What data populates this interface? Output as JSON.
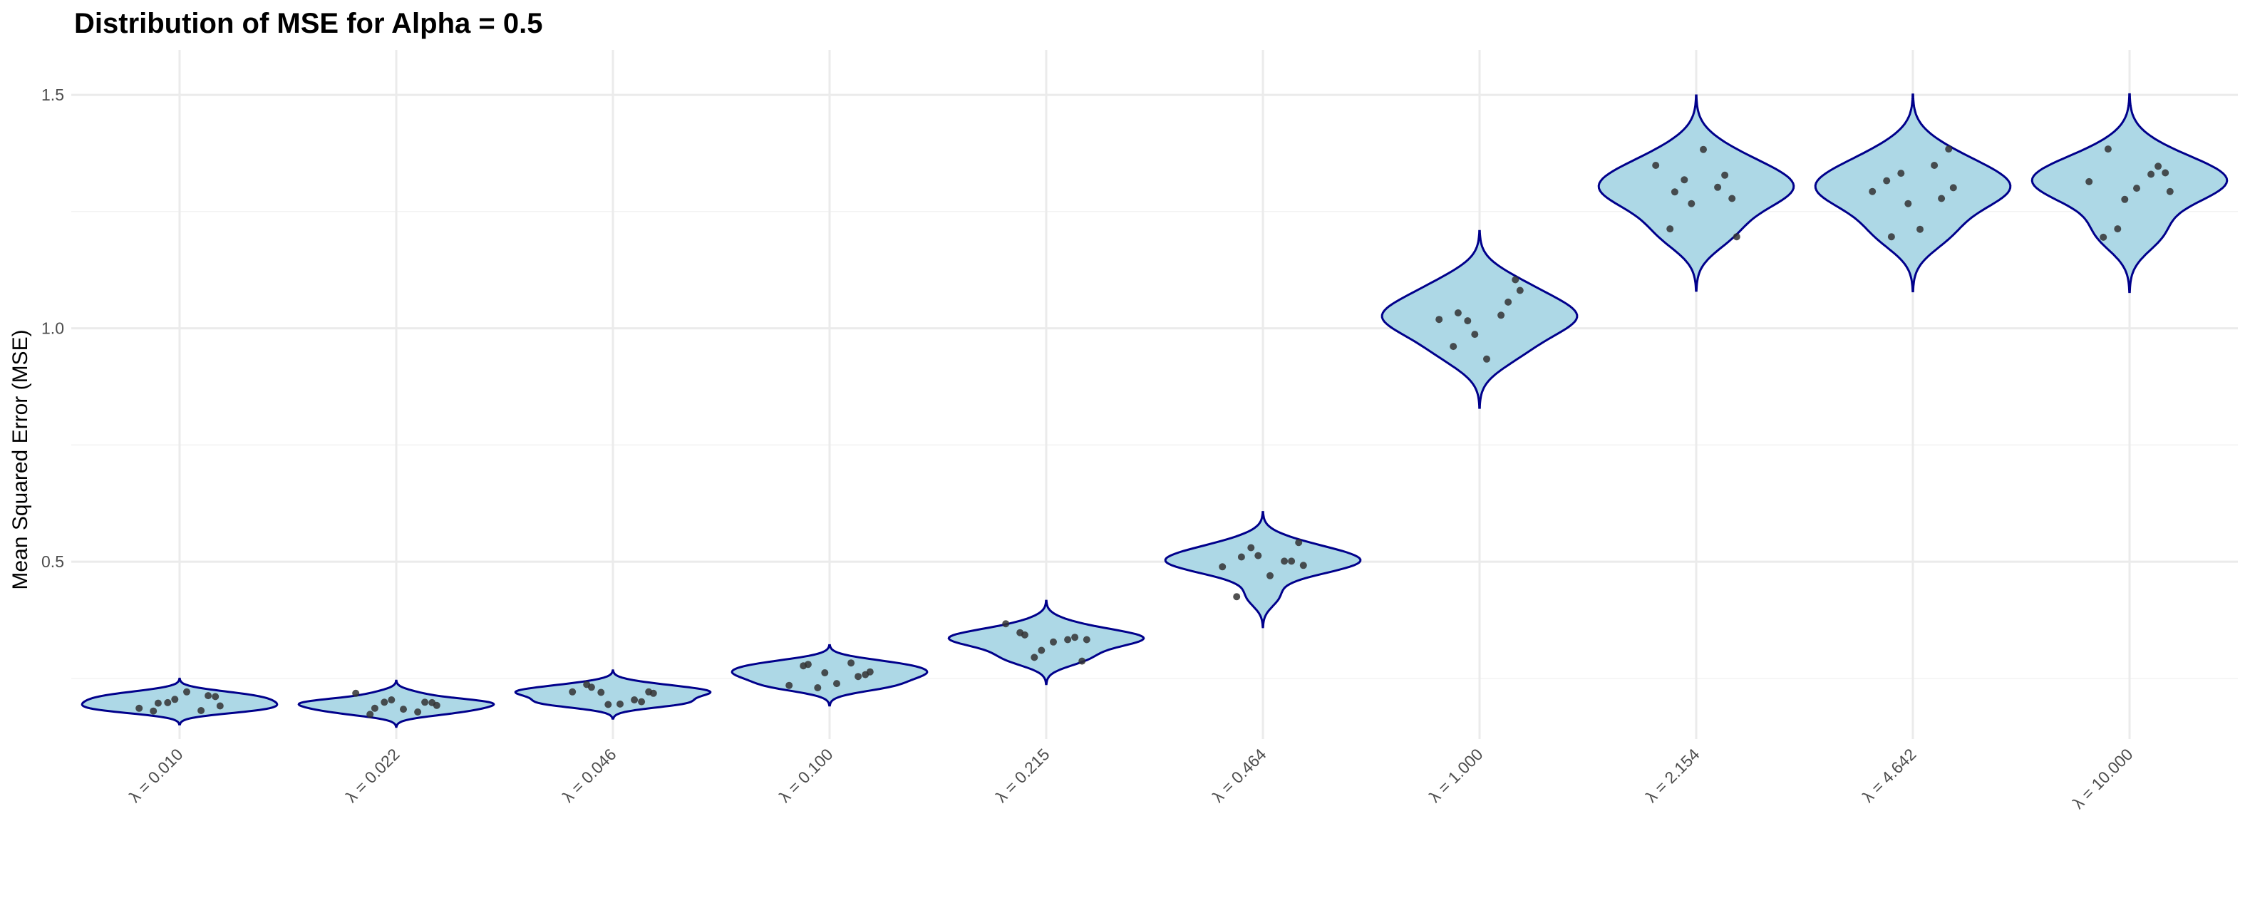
{
  "chart_data": {
    "type": "violin",
    "title": "Distribution of MSE for Alpha = 0.5",
    "xlabel": "",
    "ylabel": "Mean Squared Error (MSE)",
    "ylim": [
      0.12,
      1.52
    ],
    "yticks": [
      0.5,
      1.0,
      1.5
    ],
    "ytick_labels": [
      "0.5",
      "1.0",
      "1.5"
    ],
    "grid": true,
    "legend": "none",
    "colors": {
      "fill": "#add8e6",
      "stroke": "#00008b",
      "point": "#333333",
      "grid": "#ebebeb"
    },
    "categories": [
      "λ = 0.010",
      "λ = 0.022",
      "λ = 0.046",
      "λ = 0.100",
      "λ = 0.215",
      "λ = 0.464",
      "λ = 1.000",
      "λ = 2.154",
      "λ = 4.642",
      "λ = 10.000"
    ],
    "series": [
      {
        "values": [
          0.18,
          0.181,
          0.198,
          0.211,
          0.186,
          0.221,
          0.213,
          0.197,
          0.191,
          0.205
        ]
      },
      {
        "values": [
          0.173,
          0.178,
          0.199,
          0.198,
          0.218,
          0.184,
          0.199,
          0.186,
          0.192,
          0.204
        ]
      },
      {
        "values": [
          0.237,
          0.204,
          0.22,
          0.221,
          0.221,
          0.195,
          0.2,
          0.231,
          0.218,
          0.194
        ]
      },
      {
        "values": [
          0.277,
          0.283,
          0.23,
          0.258,
          0.235,
          0.239,
          0.254,
          0.28,
          0.264,
          0.262
        ]
      },
      {
        "values": [
          0.348,
          0.333,
          0.295,
          0.287,
          0.367,
          0.328,
          0.338,
          0.343,
          0.333,
          0.31
        ]
      },
      {
        "values": [
          0.425,
          0.501,
          0.53,
          0.541,
          0.489,
          0.47,
          0.501,
          0.51,
          0.492,
          0.513
        ]
      },
      {
        "values": [
          0.961,
          1.028,
          1.016,
          1.104,
          1.019,
          0.934,
          1.056,
          1.033,
          1.081,
          0.987
        ]
      },
      {
        "values": [
          1.213,
          1.302,
          1.318,
          1.278,
          1.349,
          1.383,
          1.328,
          1.292,
          1.196,
          1.267
        ]
      },
      {
        "values": [
          1.316,
          1.349,
          1.332,
          1.384,
          1.293,
          1.212,
          1.278,
          1.196,
          1.301,
          1.267
        ]
      },
      {
        "values": [
          1.195,
          1.33,
          1.213,
          1.333,
          1.314,
          1.3,
          1.347,
          1.384,
          1.293,
          1.276
        ]
      }
    ]
  }
}
